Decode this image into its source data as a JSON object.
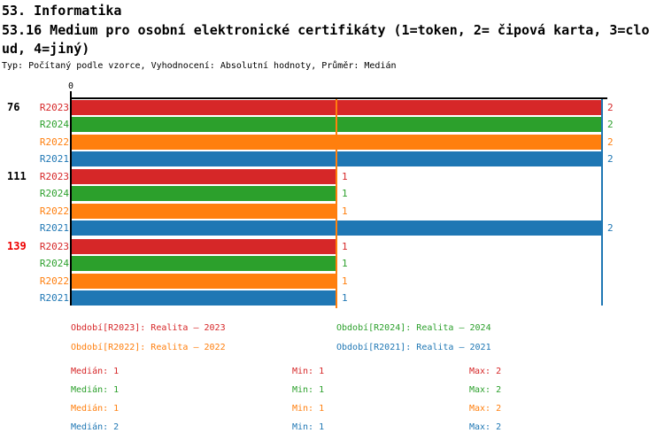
{
  "header": {
    "line1": "53. Informatika",
    "line2": "53.16 Medium pro osobní elektronické certifikáty (1=token, 2= čipová karta, 3=clo",
    "line3": "ud, 4=jiný)",
    "subtitle": "Typ: Počítaný podle vzorce, Vyhodnocení: Absolutní hodnoty, Průměr: Medián"
  },
  "chart_data": {
    "type": "bar",
    "orientation": "horizontal",
    "x_axis": {
      "tick_label": "0",
      "min": 0,
      "max_visible": 2,
      "grid": false
    },
    "series_colors": {
      "R2023": "#d62728",
      "R2024": "#2ca02c",
      "R2022": "#ff7f0e",
      "R2021": "#1f77b4"
    },
    "groups": [
      {
        "label": "76",
        "label_color": "#000000",
        "bars": [
          {
            "series": "R2023",
            "value": 2
          },
          {
            "series": "R2024",
            "value": 2
          },
          {
            "series": "R2022",
            "value": 2
          },
          {
            "series": "R2021",
            "value": 2
          }
        ]
      },
      {
        "label": "111",
        "label_color": "#000000",
        "bars": [
          {
            "series": "R2023",
            "value": 1
          },
          {
            "series": "R2024",
            "value": 1
          },
          {
            "series": "R2022",
            "value": 1
          },
          {
            "series": "R2021",
            "value": 2
          }
        ]
      },
      {
        "label": "139",
        "label_color": "#ee0000",
        "bars": [
          {
            "series": "R2023",
            "value": 1
          },
          {
            "series": "R2024",
            "value": 1
          },
          {
            "series": "R2022",
            "value": 1
          },
          {
            "series": "R2021",
            "value": 1
          }
        ]
      }
    ],
    "reference_lines": [
      {
        "value": 1,
        "color": "#ff7f0e",
        "name": "median-line-value-1"
      },
      {
        "value": 2,
        "color": "#1f77b4",
        "name": "median-line-value-2"
      }
    ]
  },
  "legend": {
    "items": [
      {
        "series": "R2023",
        "text": "Období[R2023]: Realita – 2023"
      },
      {
        "series": "R2024",
        "text": "Období[R2024]: Realita – 2024"
      },
      {
        "series": "R2022",
        "text": "Období[R2022]: Realita – 2022"
      },
      {
        "series": "R2021",
        "text": "Období[R2021]: Realita – 2021"
      }
    ]
  },
  "stats": {
    "rows": [
      {
        "series": "R2023",
        "median": "Medián: 1",
        "min": "Min: 1",
        "max": "Max: 2"
      },
      {
        "series": "R2024",
        "median": "Medián: 1",
        "min": "Min: 1",
        "max": "Max: 2"
      },
      {
        "series": "R2022",
        "median": "Medián: 1",
        "min": "Min: 1",
        "max": "Max: 2"
      },
      {
        "series": "R2021",
        "median": "Medián: 2",
        "min": "Min: 1",
        "max": "Max: 2"
      }
    ]
  }
}
